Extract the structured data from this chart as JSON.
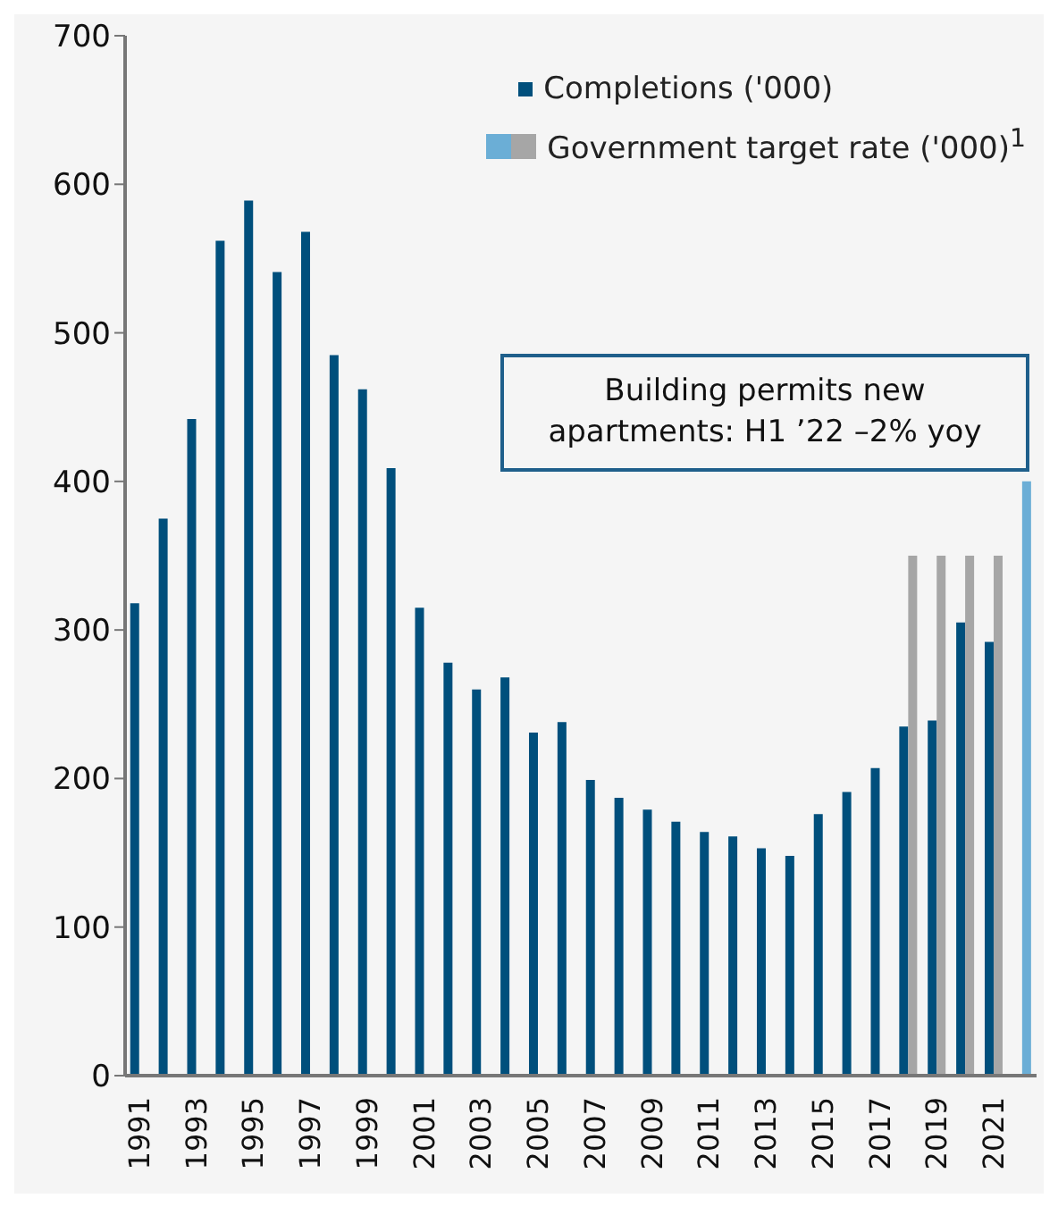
{
  "chart_data": {
    "type": "bar",
    "categories": [
      "1991",
      null,
      "1993",
      null,
      "1995",
      null,
      "1997",
      null,
      "1999",
      null,
      "2001",
      null,
      "2003",
      null,
      "2005",
      null,
      "2007",
      null,
      "2009",
      null,
      "2011",
      null,
      "2013",
      null,
      "2015",
      null,
      "2017",
      null,
      "2019",
      null,
      "2021",
      null
    ],
    "series": [
      {
        "name": "Completions ('000)",
        "color": "#004f7c",
        "values": [
          318,
          375,
          442,
          562,
          589,
          541,
          568,
          485,
          462,
          409,
          315,
          278,
          260,
          268,
          231,
          238,
          199,
          187,
          179,
          171,
          164,
          161,
          153,
          148,
          176,
          191,
          207,
          235,
          239,
          305,
          292,
          null
        ]
      },
      {
        "name": "Government target rate ('000)$^{1}$",
        "colors": [
          null,
          null,
          null,
          null,
          null,
          null,
          null,
          null,
          null,
          null,
          null,
          null,
          null,
          null,
          null,
          null,
          null,
          null,
          null,
          null,
          null,
          null,
          null,
          null,
          null,
          null,
          null,
          "#a6a6a6",
          "#a6a6a6",
          "#a6a6a6",
          "#a6a6a6",
          "#6baed6"
        ],
        "values": [
          null,
          null,
          null,
          null,
          null,
          null,
          null,
          null,
          null,
          null,
          null,
          null,
          null,
          null,
          null,
          null,
          null,
          null,
          null,
          null,
          null,
          null,
          null,
          null,
          null,
          null,
          null,
          350,
          350,
          350,
          350,
          400
        ]
      }
    ],
    "ylim": [
      0,
      700
    ],
    "yticks": [
      0,
      100,
      200,
      300,
      400,
      500,
      600,
      700
    ],
    "grid": false,
    "legend": "top right",
    "annotations": [
      "Building permits new apartments: H1 ’22 –2% yoy"
    ]
  }
}
